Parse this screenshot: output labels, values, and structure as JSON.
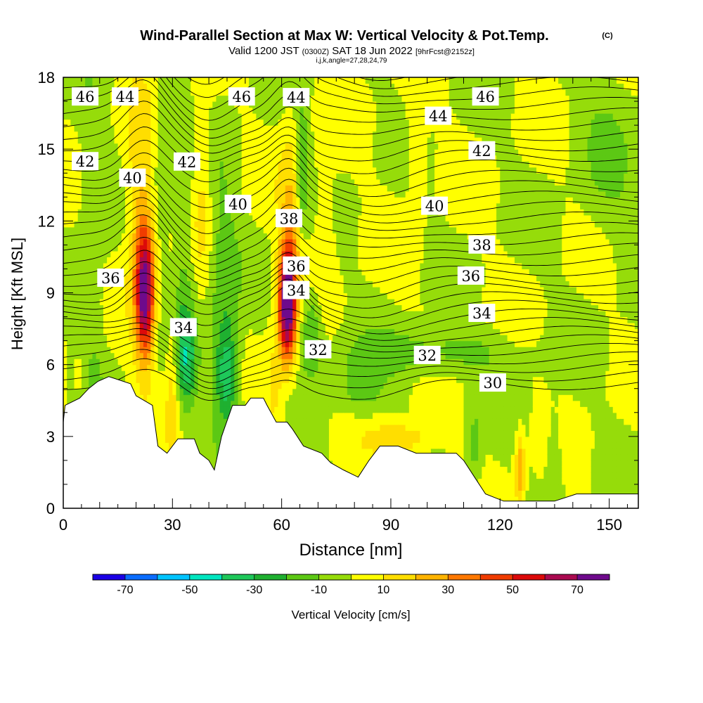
{
  "header": {
    "title": "Wind-Parallel Section at Max W: Vertical Velocity & Pot.Temp.",
    "copyright": "(C)",
    "valid_prefix": "Valid 1200 JST",
    "valid_utc": "(0300Z)",
    "valid_date": "SAT 18 Jun 2022",
    "forecast": "[9hrFcst@2152z]",
    "indices": "i,j,k,angle=27,28,24,79"
  },
  "chart_data": {
    "type": "heatmap",
    "xlabel": "Distance [nm]",
    "ylabel": "Height [Kft MSL]",
    "xlim": [
      0,
      158
    ],
    "ylim": [
      0,
      18
    ],
    "x_ticks": [
      "0",
      "30",
      "60",
      "90",
      "120",
      "150"
    ],
    "y_ticks": [
      "0",
      "3",
      "6",
      "9",
      "12",
      "15",
      "18"
    ],
    "colorbar": {
      "label": "Vertical Velocity [cm/s]",
      "tick_labels": [
        "-70",
        "-50",
        "-30",
        "-10",
        "10",
        "30",
        "50",
        "70"
      ],
      "levels": [
        -80,
        -70,
        -60,
        -50,
        -40,
        -30,
        -20,
        -10,
        0,
        10,
        20,
        30,
        40,
        50,
        60,
        70,
        80
      ],
      "colors": [
        "#1a00e6",
        "#0a6cff",
        "#00c4ff",
        "#00e6c0",
        "#1ec85a",
        "#1fb030",
        "#5cc814",
        "#96dc0a",
        "#ffff00",
        "#ffde00",
        "#ffb400",
        "#ff7800",
        "#f03c00",
        "#dc0a0a",
        "#aa0a50",
        "#6e0a8c"
      ]
    },
    "terrain": [
      [
        0,
        3.6
      ],
      [
        0.5,
        4.3
      ],
      [
        4.5,
        4.6
      ],
      [
        7,
        5.0
      ],
      [
        9.5,
        5.3
      ],
      [
        12.5,
        5.5
      ],
      [
        18.5,
        5.2
      ],
      [
        20,
        4.7
      ],
      [
        24.5,
        4.3
      ],
      [
        26,
        2.6
      ],
      [
        28.5,
        2.3
      ],
      [
        31.5,
        2.9
      ],
      [
        36,
        2.9
      ],
      [
        37.5,
        2.3
      ],
      [
        40,
        2.0
      ],
      [
        41.5,
        1.6
      ],
      [
        43.5,
        3.0
      ],
      [
        46.5,
        4.3
      ],
      [
        50,
        4.3
      ],
      [
        51.5,
        4.6
      ],
      [
        55,
        4.6
      ],
      [
        56,
        4.3
      ],
      [
        58.5,
        3.6
      ],
      [
        61.5,
        3.6
      ],
      [
        63,
        3.3
      ],
      [
        66,
        2.6
      ],
      [
        71,
        2.3
      ],
      [
        73.5,
        1.9
      ],
      [
        77,
        1.6
      ],
      [
        81,
        1.3
      ],
      [
        84,
        2.0
      ],
      [
        87,
        2.6
      ],
      [
        92,
        2.6
      ],
      [
        97,
        2.3
      ],
      [
        108,
        2.3
      ],
      [
        110,
        2.0
      ],
      [
        113,
        1.3
      ],
      [
        116,
        0.6
      ],
      [
        121,
        0.3
      ],
      [
        135,
        0.3
      ],
      [
        141,
        0.6
      ],
      [
        158,
        0.6
      ]
    ],
    "velocity_features": [
      {
        "x": 22.5,
        "z": 9.0,
        "peak": 72
      },
      {
        "x": 61.5,
        "z": 8.5,
        "peak": 78
      },
      {
        "x": 34.0,
        "z": 6.2,
        "peak": -28
      },
      {
        "x": 45.0,
        "z": 5.6,
        "peak": -32
      },
      {
        "x": 65.5,
        "z": 14.0,
        "peak": -28
      },
      {
        "x": 68.0,
        "z": 7.5,
        "peak": -25
      },
      {
        "x": 82.0,
        "z": 5.0,
        "peak": -18
      },
      {
        "x": 30.0,
        "z": 5.5,
        "peak": 18
      },
      {
        "x": 58.0,
        "z": 5.0,
        "peak": 15
      },
      {
        "x": 93.0,
        "z": 3.0,
        "peak": 20
      },
      {
        "x": 125.5,
        "z": 1.6,
        "peak": 30
      }
    ],
    "theta_contours": [
      {
        "level": 30,
        "label": "30",
        "labelled": true
      },
      {
        "level": 32,
        "label": "32",
        "labelled": true
      },
      {
        "level": 34,
        "label": "34",
        "labelled": true
      },
      {
        "level": 36,
        "label": "36",
        "labelled": true
      },
      {
        "level": 38,
        "label": "38",
        "labelled": true
      },
      {
        "level": 40,
        "label": "40",
        "labelled": true
      },
      {
        "level": 42,
        "label": "42",
        "labelled": true
      },
      {
        "level": 44,
        "label": "44",
        "labelled": true
      },
      {
        "level": 46,
        "label": "46",
        "labelled": true
      }
    ]
  }
}
